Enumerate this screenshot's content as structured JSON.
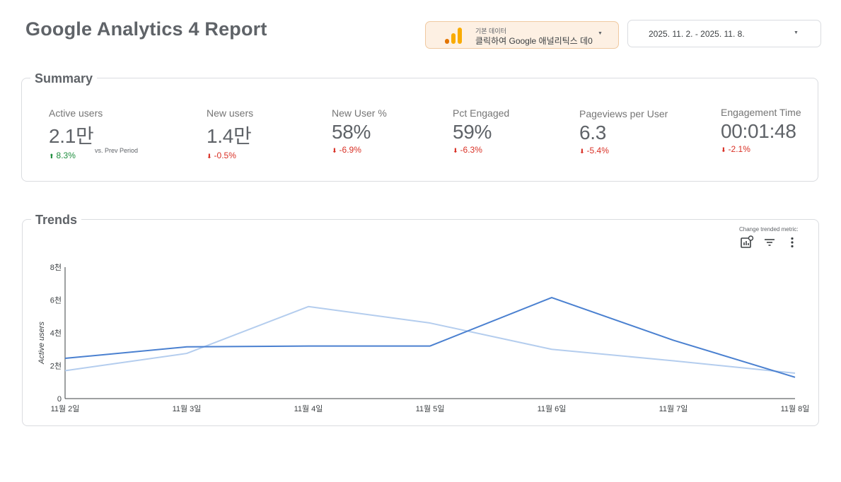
{
  "header": {
    "title": "Google Analytics 4 Report"
  },
  "data_source": {
    "sub_label": "기본 데이터",
    "main_label": "클릭하여 Google 애널리틱스 데0",
    "icon": "google-analytics-bars-icon",
    "colors": {
      "bar_light": "#f9ab00",
      "bar_dark": "#e37400",
      "background": "#fdf0e3"
    }
  },
  "date_range": {
    "value": "2025. 11. 2. - 2025. 11. 8."
  },
  "summary": {
    "title": "Summary",
    "comparison_label": "vs. Prev Period",
    "metrics": [
      {
        "label": "Active users",
        "value": "2.1만",
        "delta": "8.3%",
        "direction": "up"
      },
      {
        "label": "New users",
        "value": "1.4만",
        "delta": "-0.5%",
        "direction": "down"
      },
      {
        "label": "New User %",
        "value": "58%",
        "delta": "-6.9%",
        "direction": "down"
      },
      {
        "label": "Pct Engaged",
        "value": "59%",
        "delta": "-6.3%",
        "direction": "down"
      },
      {
        "label": "Pageviews per User",
        "value": "6.3",
        "delta": "-5.4%",
        "direction": "down"
      },
      {
        "label": "Engagement Time",
        "value": "00:01:48",
        "delta": "-2.1%",
        "direction": "down"
      }
    ],
    "colors": {
      "up": "#1e8e3e",
      "down": "#d93025"
    }
  },
  "trends": {
    "title": "Trends",
    "toolbar_label": "Change trended metric:",
    "toolbar_icons": [
      "chart-settings-icon",
      "filter-icon",
      "more-vert-icon"
    ]
  },
  "chart_data": {
    "type": "line",
    "x": [
      "11월 2일",
      "11월 3일",
      "11월 4일",
      "11월 5일",
      "11월 6일",
      "11월 7일",
      "11월 8일"
    ],
    "series": [
      {
        "values": [
          2450,
          3150,
          3200,
          3200,
          6150,
          3550,
          1300
        ],
        "color": "#4a80d0"
      },
      {
        "values": [
          1700,
          2750,
          5600,
          4600,
          3000,
          2300,
          1550
        ],
        "color": "#b4cdee"
      }
    ],
    "ylabel": "Active users",
    "yticks": [
      {
        "value": 0,
        "label": "0"
      },
      {
        "value": 2000,
        "label": "2천"
      },
      {
        "value": 4000,
        "label": "4천"
      },
      {
        "value": 6000,
        "label": "6천"
      },
      {
        "value": 8000,
        "label": "8천"
      }
    ],
    "ylim": [
      0,
      8000
    ],
    "grid": false,
    "legend": "none"
  }
}
